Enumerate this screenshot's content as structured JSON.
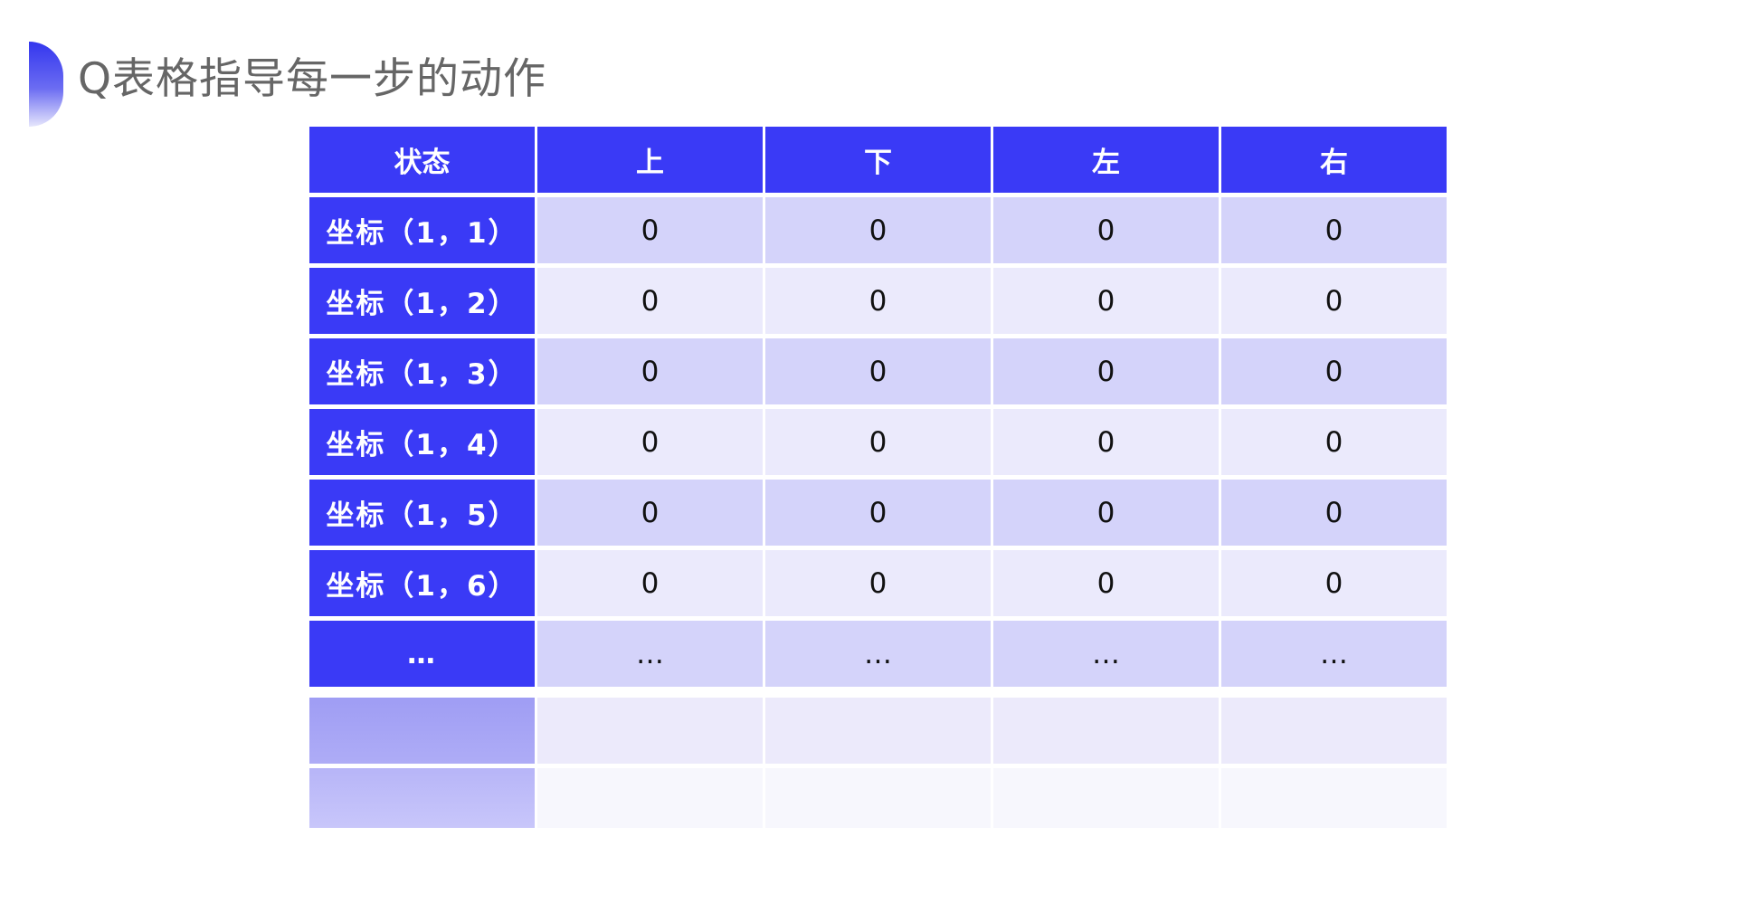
{
  "title": "Q表格指导每一步的动作",
  "colors": {
    "header": "#3a3af6",
    "row_odd": "#d4d3fa",
    "row_even": "#ebeafc"
  },
  "table": {
    "headers": [
      "状态",
      "上",
      "下",
      "左",
      "右"
    ],
    "rows": [
      {
        "state": "坐标（1，1）",
        "values": [
          "0",
          "0",
          "0",
          "0"
        ]
      },
      {
        "state": "坐标（1，2）",
        "values": [
          "0",
          "0",
          "0",
          "0"
        ]
      },
      {
        "state": "坐标（1，3）",
        "values": [
          "0",
          "0",
          "0",
          "0"
        ]
      },
      {
        "state": "坐标（1，4）",
        "values": [
          "0",
          "0",
          "0",
          "0"
        ]
      },
      {
        "state": "坐标（1，5）",
        "values": [
          "0",
          "0",
          "0",
          "0"
        ]
      },
      {
        "state": "坐标（1，6）",
        "values": [
          "0",
          "0",
          "0",
          "0"
        ]
      },
      {
        "state": "…",
        "values": [
          "…",
          "…",
          "…",
          "…"
        ]
      }
    ]
  }
}
